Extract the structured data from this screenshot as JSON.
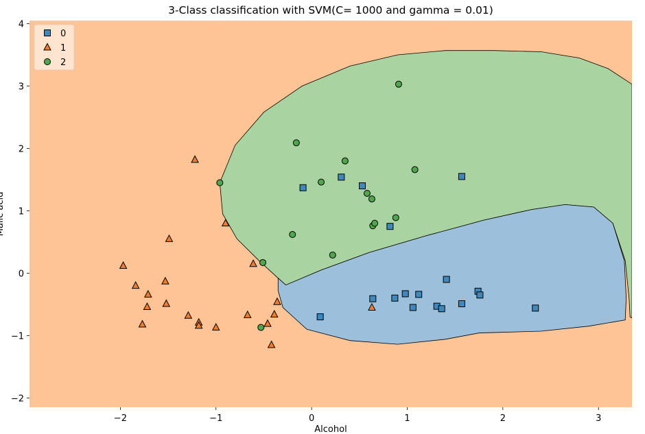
{
  "chart_data": {
    "type": "scatter",
    "title": "3-Class classification with SVM(C= 1000 and gamma = 0.01)",
    "xlabel": "Alcohol",
    "ylabel": "Malic acid",
    "xlim": [
      -2.95,
      3.35
    ],
    "ylim": [
      -2.15,
      4.05
    ],
    "xticks": [
      -2,
      -1,
      0,
      1,
      2,
      3
    ],
    "yticks": [
      -2,
      -1,
      0,
      1,
      2,
      3,
      4
    ],
    "legend_position": "upper-left",
    "region_colors": {
      "0": "#9cc0dc",
      "1": "#ffc495",
      "2": "#a9d3a0"
    },
    "background_class": "1",
    "series": [
      {
        "name": "0",
        "marker": "square",
        "color": "#3f88bb",
        "x": [
          -0.09,
          0.31,
          0.53,
          0.82,
          1.57,
          0.09,
          0.64,
          0.87,
          0.98,
          1.06,
          1.12,
          1.31,
          1.36,
          1.41,
          1.57,
          1.74,
          1.76,
          2.34
        ],
        "y": [
          1.37,
          1.54,
          1.4,
          0.75,
          1.55,
          -0.7,
          -0.41,
          -0.4,
          -0.33,
          -0.55,
          -0.34,
          -0.53,
          -0.57,
          -0.1,
          -0.49,
          -0.29,
          -0.35,
          -0.56
        ]
      },
      {
        "name": "1",
        "marker": "triangle",
        "color": "#f17d2b",
        "x": [
          -1.97,
          -1.84,
          -1.77,
          -1.71,
          -1.72,
          -1.53,
          -1.52,
          -1.49,
          -1.29,
          -1.22,
          -1.18,
          -1.18,
          -1.0,
          -0.9,
          -0.67,
          -0.61,
          -0.46,
          -0.42,
          -0.39,
          -0.36,
          0.63
        ],
        "y": [
          0.12,
          -0.2,
          -0.82,
          -0.34,
          -0.54,
          -0.13,
          -0.49,
          0.55,
          -0.68,
          1.82,
          -0.79,
          -0.84,
          -0.87,
          0.8,
          -0.67,
          0.15,
          -0.81,
          -1.15,
          -0.66,
          -0.46,
          -0.55
        ]
      },
      {
        "name": "2",
        "marker": "circle",
        "color": "#4ea74a",
        "x": [
          -0.96,
          -0.51,
          -0.53,
          -0.2,
          -0.16,
          0.1,
          0.22,
          0.35,
          0.58,
          0.63,
          0.64,
          0.66,
          0.88,
          0.91,
          1.08
        ],
        "y": [
          1.45,
          0.17,
          -0.87,
          0.62,
          2.09,
          1.46,
          0.29,
          1.8,
          1.28,
          1.19,
          0.76,
          0.8,
          0.89,
          3.03,
          1.66
        ]
      }
    ]
  }
}
